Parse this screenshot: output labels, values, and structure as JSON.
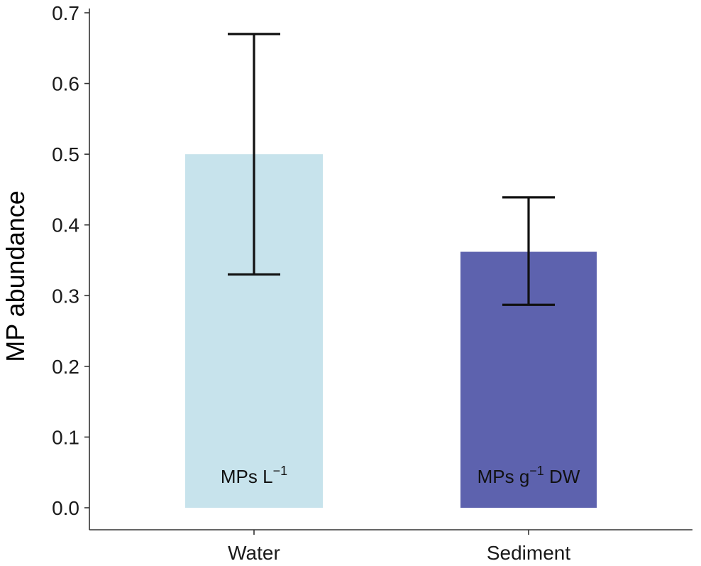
{
  "chart_data": {
    "type": "bar",
    "title": "",
    "xlabel": "",
    "ylabel": "MP abundance",
    "ylim": [
      0,
      0.7
    ],
    "yticks": [
      "0.0",
      "0.1",
      "0.2",
      "0.3",
      "0.4",
      "0.5",
      "0.6",
      "0.7"
    ],
    "grid": false,
    "legend": "none",
    "bars": [
      {
        "category": "Water",
        "value": 0.5,
        "error_low": 0.33,
        "error_high": 0.67,
        "unit_label": {
          "base": "MPs L",
          "sup": "−1",
          "tail": ""
        },
        "color": "#c7e3ec"
      },
      {
        "category": "Sediment",
        "value": 0.362,
        "error_low": 0.287,
        "error_high": 0.439,
        "unit_label": {
          "base": "MPs g",
          "sup": "−1",
          "tail": " DW"
        },
        "color": "#5d62ae"
      }
    ]
  },
  "colors": {
    "axis": "#333333",
    "errorbar": "#111111"
  }
}
